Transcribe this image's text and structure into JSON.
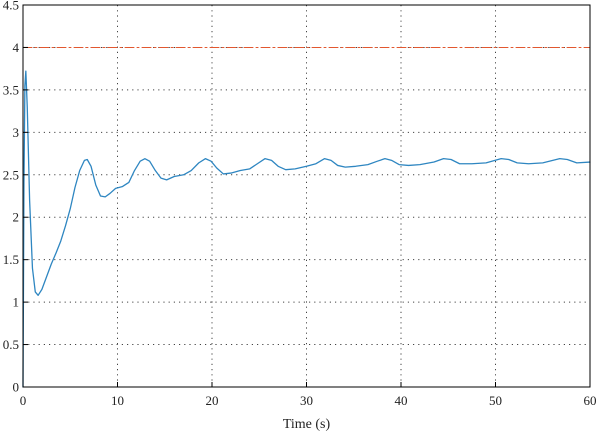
{
  "chart_data": {
    "type": "line",
    "title": "",
    "xlabel": "Time (s)",
    "ylabel": "",
    "xlim": [
      0,
      60
    ],
    "ylim": [
      0,
      4.5
    ],
    "x_ticks": [
      "0",
      "10",
      "20",
      "30",
      "40",
      "50",
      "60"
    ],
    "y_ticks": [
      "0",
      "0.5",
      "1",
      "1.5",
      "2",
      "2.5",
      "3",
      "3.5",
      "4",
      "4.5"
    ],
    "grid": true,
    "grid_style": "dotted",
    "legend": "none",
    "series": [
      {
        "style": "solid",
        "color": "#2e86c1",
        "points": [
          [
            0,
            0
          ],
          [
            0.1,
            2.4
          ],
          [
            0.2,
            3.55
          ],
          [
            0.3,
            3.72
          ],
          [
            0.45,
            3.3
          ],
          [
            0.7,
            2.2
          ],
          [
            1.0,
            1.4
          ],
          [
            1.3,
            1.12
          ],
          [
            1.6,
            1.08
          ],
          [
            2.0,
            1.15
          ],
          [
            2.5,
            1.3
          ],
          [
            3.0,
            1.45
          ],
          [
            3.5,
            1.58
          ],
          [
            4.0,
            1.72
          ],
          [
            4.5,
            1.9
          ],
          [
            5.0,
            2.1
          ],
          [
            5.5,
            2.35
          ],
          [
            6.0,
            2.55
          ],
          [
            6.5,
            2.67
          ],
          [
            6.8,
            2.68
          ],
          [
            7.2,
            2.6
          ],
          [
            7.7,
            2.38
          ],
          [
            8.2,
            2.25
          ],
          [
            8.7,
            2.24
          ],
          [
            9.2,
            2.28
          ],
          [
            9.8,
            2.34
          ],
          [
            10.5,
            2.36
          ],
          [
            11.2,
            2.41
          ],
          [
            11.8,
            2.55
          ],
          [
            12.4,
            2.66
          ],
          [
            12.9,
            2.69
          ],
          [
            13.4,
            2.66
          ],
          [
            14.0,
            2.55
          ],
          [
            14.6,
            2.46
          ],
          [
            15.2,
            2.44
          ],
          [
            16.0,
            2.48
          ],
          [
            17.0,
            2.5
          ],
          [
            17.8,
            2.55
          ],
          [
            18.6,
            2.64
          ],
          [
            19.3,
            2.69
          ],
          [
            19.9,
            2.66
          ],
          [
            20.5,
            2.58
          ],
          [
            21.2,
            2.51
          ],
          [
            22.0,
            2.52
          ],
          [
            23.0,
            2.55
          ],
          [
            24.0,
            2.57
          ],
          [
            24.8,
            2.63
          ],
          [
            25.6,
            2.69
          ],
          [
            26.3,
            2.67
          ],
          [
            27.0,
            2.6
          ],
          [
            27.8,
            2.56
          ],
          [
            28.8,
            2.57
          ],
          [
            30.0,
            2.6
          ],
          [
            31.0,
            2.63
          ],
          [
            31.9,
            2.69
          ],
          [
            32.6,
            2.67
          ],
          [
            33.3,
            2.61
          ],
          [
            34.1,
            2.59
          ],
          [
            35.2,
            2.6
          ],
          [
            36.5,
            2.62
          ],
          [
            37.5,
            2.66
          ],
          [
            38.3,
            2.69
          ],
          [
            39.0,
            2.67
          ],
          [
            39.8,
            2.62
          ],
          [
            40.8,
            2.61
          ],
          [
            42.0,
            2.62
          ],
          [
            43.5,
            2.65
          ],
          [
            44.5,
            2.69
          ],
          [
            45.3,
            2.68
          ],
          [
            46.2,
            2.63
          ],
          [
            47.5,
            2.63
          ],
          [
            49.0,
            2.64
          ],
          [
            50.6,
            2.69
          ],
          [
            51.4,
            2.68
          ],
          [
            52.3,
            2.64
          ],
          [
            53.5,
            2.63
          ],
          [
            55.0,
            2.64
          ],
          [
            56.8,
            2.69
          ],
          [
            57.6,
            2.68
          ],
          [
            58.6,
            2.64
          ],
          [
            60.0,
            2.65
          ]
        ]
      },
      {
        "style": "dash-dot",
        "color": "#e2572f",
        "points": [
          [
            0,
            4
          ],
          [
            60,
            4
          ]
        ]
      }
    ]
  }
}
